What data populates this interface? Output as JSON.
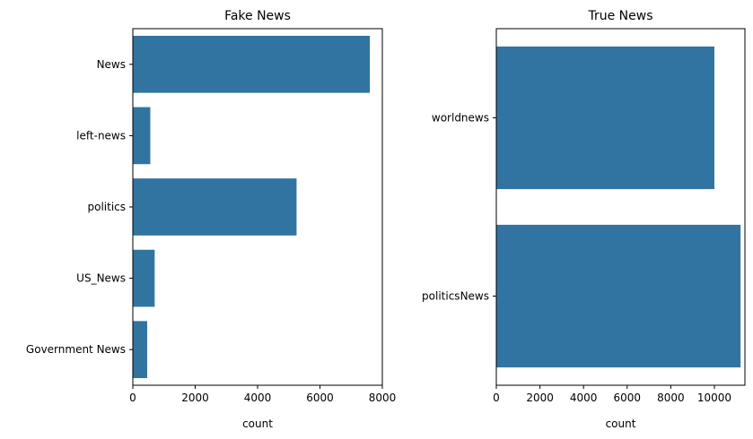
{
  "chart_data": [
    {
      "type": "bar",
      "orientation": "horizontal",
      "title": "Fake News",
      "xlabel": "count",
      "ylabel": "",
      "categories": [
        "News",
        "left-news",
        "politics",
        "US_News",
        "Government News"
      ],
      "values": [
        7600,
        560,
        5250,
        700,
        460
      ],
      "xlim": [
        0,
        8000
      ],
      "xticks": [
        0,
        2000,
        4000,
        6000,
        8000
      ],
      "color": "#3274a1",
      "grid": false
    },
    {
      "type": "bar",
      "orientation": "horizontal",
      "title": "True News",
      "xlabel": "count",
      "ylabel": "",
      "categories": [
        "worldnews",
        "politicsNews"
      ],
      "values": [
        10000,
        11200
      ],
      "xlim": [
        0,
        11400
      ],
      "xticks": [
        0,
        2000,
        4000,
        6000,
        8000,
        10000
      ],
      "color": "#3274a1",
      "grid": false
    }
  ]
}
